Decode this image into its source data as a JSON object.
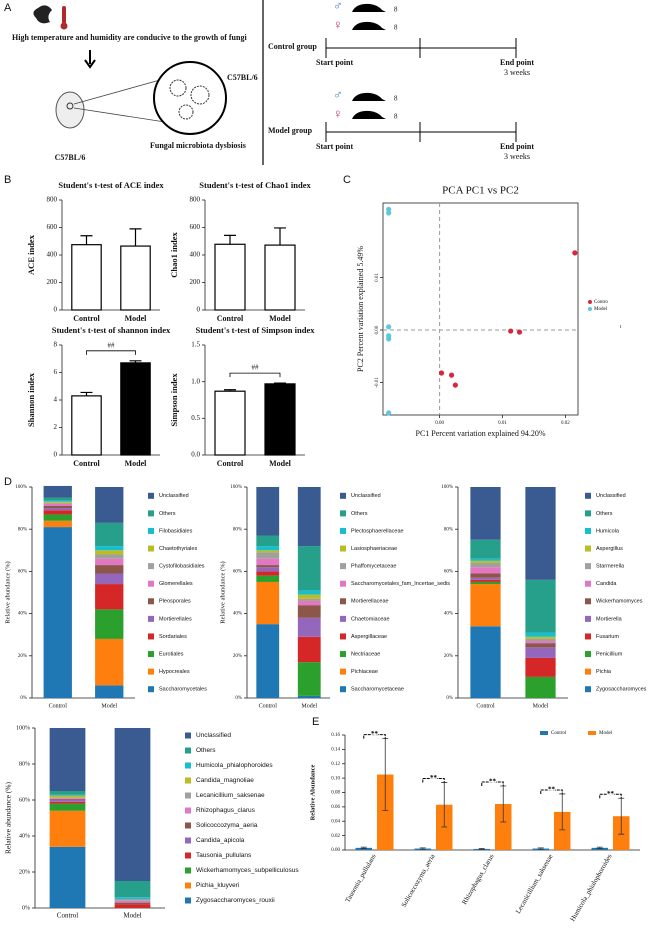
{
  "panel_labels": [
    "A",
    "B",
    "C",
    "D",
    "E"
  ],
  "diagram": {
    "left_caption": "High temperature and humidity are conducive to the growth of fungi",
    "dysbiosis": "Fungal microbiota dysbiosis",
    "strain_left": "C57BL/6",
    "strain_center": "C57BL/6",
    "groups": [
      {
        "name": "Control group",
        "male_n": 8,
        "female_n": 8,
        "start": "Start point",
        "end": "End point",
        "duration": "3 weeks"
      },
      {
        "name": "Model group",
        "male_n": 8,
        "female_n": 8,
        "start": "Start point",
        "end": "End point",
        "duration": "3 weeks"
      }
    ]
  },
  "chart_data": [
    {
      "type": "bar",
      "title": "Student's t-test of ACE index",
      "ylabel": "ACE index",
      "categories": [
        "Control",
        "Model"
      ],
      "values": [
        475,
        465
      ],
      "errors": [
        65,
        125
      ],
      "colors": [
        "#ffffff",
        "#ffffff"
      ],
      "ylim": [
        0,
        800
      ],
      "yticks": [
        0,
        200,
        400,
        600,
        800
      ]
    },
    {
      "type": "bar",
      "title": "Student's t-test of Chao1 index",
      "ylabel": "Chao1 index",
      "categories": [
        "Control",
        "Model"
      ],
      "values": [
        478,
        472
      ],
      "errors": [
        65,
        125
      ],
      "colors": [
        "#ffffff",
        "#ffffff"
      ],
      "ylim": [
        0,
        800
      ],
      "yticks": [
        0,
        200,
        400,
        600,
        800
      ]
    },
    {
      "type": "bar",
      "title": "Student's t-test of shannon index",
      "ylabel": "Shannon index",
      "categories": [
        "Control",
        "Model"
      ],
      "values": [
        4.3,
        6.7
      ],
      "errors": [
        0.25,
        0.15
      ],
      "colors": [
        "#ffffff",
        "#000000"
      ],
      "ylim": [
        0,
        8
      ],
      "yticks": [
        0,
        2,
        4,
        6,
        8
      ],
      "annotation": "##"
    },
    {
      "type": "bar",
      "title": "Student's t-test of Simpson index",
      "ylabel": "Simpson index",
      "categories": [
        "Control",
        "Model"
      ],
      "values": [
        0.87,
        0.97
      ],
      "errors": [
        0.02,
        0.01
      ],
      "colors": [
        "#ffffff",
        "#000000"
      ],
      "ylim": [
        0,
        1.5
      ],
      "yticks": [
        {
          "value": 0,
          "label": "0.0"
        },
        0.5,
        {
          "value": 1,
          "label": "1.0"
        },
        1.5
      ],
      "annotation": "##"
    },
    {
      "type": "scatter",
      "title": "PCA   PC1 vs PC2",
      "xlabel": "PC1 Percent variation explained 94.20%",
      "ylabel": "PC2 Percent variation explained 5.49%",
      "xlim": [
        -0.009,
        0.022
      ],
      "ylim": [
        -0.0162,
        0.0242
      ],
      "xticks": [
        {
          "value": 0,
          "label": "0.00"
        },
        0.01,
        0.02
      ],
      "yticks": [
        -0.01,
        {
          "value": 0,
          "label": "0.00"
        },
        0.01
      ],
      "zero_lines": true,
      "note": "t",
      "series": [
        {
          "name": "Contro",
          "color": "#d7263d",
          "x": [
            0.0215,
            0.0113,
            0.0127,
            0.0003,
            0.0019,
            0.0025
          ],
          "y": [
            0.0147,
            -0.0002,
            -0.0004,
            -0.0082,
            -0.0086,
            -0.0105
          ]
        },
        {
          "name": "Model",
          "color": "#5bc8e0",
          "x": [
            -0.0081,
            -0.0081,
            -0.0081,
            -0.0081,
            -0.0081,
            -0.0081
          ],
          "y": [
            0.023,
            0.0223,
            0.0006,
            -0.0011,
            -0.0017,
            -0.0158
          ]
        }
      ]
    },
    {
      "type": "stacked",
      "ylabel": "Relative abundance (%)",
      "categories": [
        "Control",
        "Model"
      ],
      "ylim": [
        0,
        100
      ],
      "yticks": [
        {
          "value": 0,
          "label": "0%"
        },
        {
          "value": 20,
          "label": "20%"
        },
        {
          "value": 40,
          "label": "40%"
        },
        {
          "value": 60,
          "label": "60%"
        },
        {
          "value": 80,
          "label": "80%"
        },
        {
          "value": 100,
          "label": "100%"
        }
      ],
      "series": [
        {
          "name": "Saccharomycetales",
          "color": "#1f77b4",
          "values": [
            81,
            6
          ]
        },
        {
          "name": "Hypocreales",
          "color": "#ff7f0e",
          "values": [
            3,
            22
          ]
        },
        {
          "name": "Eurotiales",
          "color": "#2ca02c",
          "values": [
            3,
            14
          ]
        },
        {
          "name": "Sordariales",
          "color": "#d62728",
          "values": [
            2,
            12
          ]
        },
        {
          "name": "Mortierellales",
          "color": "#9467bd",
          "values": [
            1,
            5
          ]
        },
        {
          "name": "Pleosporales",
          "color": "#8c564b",
          "values": [
            1,
            4
          ]
        },
        {
          "name": "Glomerellales",
          "color": "#e377c2",
          "values": [
            1,
            3
          ]
        },
        {
          "name": "Cystofilobasidiales",
          "color": "#a0a0a0",
          "values": [
            0.5,
            2
          ]
        },
        {
          "name": "Chaetothyriales",
          "color": "#bcbd22",
          "values": [
            0.5,
            2
          ]
        },
        {
          "name": "Filobasidiales",
          "color": "#17becf",
          "values": [
            0.5,
            2
          ]
        },
        {
          "name": "Others",
          "color": "#26a08a",
          "values": [
            1.5,
            11
          ]
        },
        {
          "name": "Unclassified",
          "color": "#3a5a92",
          "values": [
            5.5,
            17
          ]
        }
      ]
    },
    {
      "type": "stacked",
      "ylabel": "Relative abundance (%)",
      "categories": [
        "Control",
        "Model"
      ],
      "ylim": [
        0,
        100
      ],
      "yticks": [
        {
          "value": 0,
          "label": "0%"
        },
        {
          "value": 20,
          "label": "20%"
        },
        {
          "value": 40,
          "label": "40%"
        },
        {
          "value": 60,
          "label": "60%"
        },
        {
          "value": 80,
          "label": "80%"
        },
        {
          "value": 100,
          "label": "100%"
        }
      ],
      "series": [
        {
          "name": "Saccharomycetaceae",
          "color": "#1f77b4",
          "values": [
            35,
            1
          ]
        },
        {
          "name": "Pichiaceae",
          "color": "#ff7f0e",
          "values": [
            20,
            0
          ]
        },
        {
          "name": "Nectriaceae",
          "color": "#2ca02c",
          "values": [
            3,
            16
          ]
        },
        {
          "name": "Aspergillaceae",
          "color": "#d62728",
          "values": [
            2,
            12
          ]
        },
        {
          "name": "Chaetomiaceae",
          "color": "#9467bd",
          "values": [
            2,
            9
          ]
        },
        {
          "name": "Mortierellaceae",
          "color": "#8c564b",
          "values": [
            1,
            6
          ]
        },
        {
          "name": "Saccharomycetales_fam_Incertae_sedis",
          "color": "#e377c2",
          "values": [
            3,
            2
          ]
        },
        {
          "name": "Phaffomycetaceae",
          "color": "#a0a0a0",
          "values": [
            3,
            1
          ]
        },
        {
          "name": "Lasiosphaeriaceae",
          "color": "#bcbd22",
          "values": [
            1,
            2
          ]
        },
        {
          "name": "Plectosphaerellaceae",
          "color": "#17becf",
          "values": [
            2,
            2
          ]
        },
        {
          "name": "Others",
          "color": "#26a08a",
          "values": [
            5,
            21
          ]
        },
        {
          "name": "Unclassified",
          "color": "#3a5a92",
          "values": [
            23,
            28
          ]
        }
      ]
    },
    {
      "type": "stacked",
      "categories": [
        "Control",
        "Model"
      ],
      "ylim": [
        0,
        100
      ],
      "yticks": [
        {
          "value": 0,
          "label": "0%"
        },
        {
          "value": 20,
          "label": "20%"
        },
        {
          "value": 40,
          "label": "40%"
        },
        {
          "value": 60,
          "label": "60%"
        },
        {
          "value": 80,
          "label": "80%"
        },
        {
          "value": 100,
          "label": "100%"
        }
      ],
      "series": [
        {
          "name": "Zygosaccharomyces",
          "color": "#1f77b4",
          "values": [
            34,
            0
          ]
        },
        {
          "name": "Pichia",
          "color": "#ff7f0e",
          "values": [
            20,
            0
          ]
        },
        {
          "name": "Penicillium",
          "color": "#2ca02c",
          "values": [
            1,
            10
          ]
        },
        {
          "name": "Fusarium",
          "color": "#d62728",
          "values": [
            1,
            9
          ]
        },
        {
          "name": "Mortierella",
          "color": "#9467bd",
          "values": [
            1,
            5
          ]
        },
        {
          "name": "Wickerhamomyces",
          "color": "#8c564b",
          "values": [
            2,
            2
          ]
        },
        {
          "name": "Candida",
          "color": "#e377c2",
          "values": [
            3,
            1
          ]
        },
        {
          "name": "Starmerella",
          "color": "#a0a0a0",
          "values": [
            2,
            1
          ]
        },
        {
          "name": "Aspergillus",
          "color": "#bcbd22",
          "values": [
            1,
            1
          ]
        },
        {
          "name": "Humicola",
          "color": "#17becf",
          "values": [
            1,
            2
          ]
        },
        {
          "name": "Others",
          "color": "#26a08a",
          "values": [
            9,
            25
          ]
        },
        {
          "name": "Unclassified",
          "color": "#3a5a92",
          "values": [
            25,
            44
          ]
        }
      ]
    },
    {
      "type": "stacked",
      "ylabel": "Relative abundance (%)",
      "categories": [
        "Control",
        "Model"
      ],
      "ylim": [
        0,
        100
      ],
      "yticks": [
        {
          "value": 0,
          "label": "0%"
        },
        {
          "value": 20,
          "label": "20%"
        },
        {
          "value": 40,
          "label": "40%"
        },
        {
          "value": 60,
          "label": "60%"
        },
        {
          "value": 80,
          "label": "80%"
        },
        {
          "value": 100,
          "label": "100%"
        }
      ],
      "series": [
        {
          "name": "Zygosaccharomyces_rouxii",
          "color": "#1f77b4",
          "values": [
            34,
            0
          ]
        },
        {
          "name": "Pichia_kluyveri",
          "color": "#ff7f0e",
          "values": [
            20,
            0
          ]
        },
        {
          "name": "Wickerhamomyces_subpelliculosus",
          "color": "#2ca02c",
          "values": [
            4,
            0
          ]
        },
        {
          "name": "Tausonia_pullulans",
          "color": "#d62728",
          "values": [
            1,
            2
          ]
        },
        {
          "name": "Candida_apicola",
          "color": "#9467bd",
          "values": [
            1,
            0
          ]
        },
        {
          "name": "Solicoccozyma_aeria",
          "color": "#8c564b",
          "values": [
            0.5,
            1
          ]
        },
        {
          "name": "Rhizophagus_clarus",
          "color": "#e377c2",
          "values": [
            0.5,
            1
          ]
        },
        {
          "name": "Lecanicillium_saksenae",
          "color": "#a0a0a0",
          "values": [
            0.5,
            1
          ]
        },
        {
          "name": "Candida_magnoliae",
          "color": "#bcbd22",
          "values": [
            1,
            0
          ]
        },
        {
          "name": "Humicola_phialophoroides",
          "color": "#17becf",
          "values": [
            0.5,
            1
          ]
        },
        {
          "name": "Others",
          "color": "#26a08a",
          "values": [
            2,
            9
          ]
        },
        {
          "name": "Unclassified",
          "color": "#3a5a92",
          "values": [
            35,
            85
          ]
        }
      ]
    },
    {
      "type": "grouped",
      "ylabel": "Relative Abundance",
      "categories": [
        "Tausonia_pullulans",
        "Solicoccozyma_aeria",
        "Rhizophagus_clarus",
        "Lecanicillium_saksenae",
        "Humicola_phialophoroides"
      ],
      "ylim": [
        0,
        0.16
      ],
      "yticks": [
        {
          "value": 0,
          "label": "0.00"
        },
        0.02,
        0.04,
        0.06,
        0.08,
        {
          "value": 0.1,
          "label": "0.10"
        },
        0.12,
        0.14,
        0.16
      ],
      "annotations": [
        "**",
        "**",
        "**",
        "**",
        "**"
      ],
      "series": [
        {
          "name": "Control",
          "color": "#1f77b4",
          "values": [
            0.003,
            0.002,
            0.0015,
            0.002,
            0.003
          ],
          "errors": [
            0.001,
            0.001,
            0.0008,
            0.001,
            0.001
          ]
        },
        {
          "name": "Model",
          "color": "#ff7f0e",
          "values": [
            0.105,
            0.063,
            0.064,
            0.053,
            0.047
          ],
          "errors": [
            0.05,
            0.031,
            0.025,
            0.025,
            0.025
          ]
        }
      ]
    }
  ]
}
